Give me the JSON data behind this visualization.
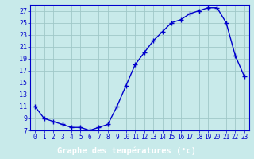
{
  "hours": [
    0,
    1,
    2,
    3,
    4,
    5,
    6,
    7,
    8,
    9,
    10,
    11,
    12,
    13,
    14,
    15,
    16,
    17,
    18,
    19,
    20,
    21,
    22,
    23
  ],
  "temperatures": [
    11,
    9,
    8.5,
    8,
    7.5,
    7.5,
    7,
    7.5,
    8,
    11,
    14.5,
    18,
    20,
    22,
    23.5,
    25,
    25.5,
    26.5,
    27,
    27.5,
    27.5,
    25,
    19.5,
    16
  ],
  "line_color": "#0000cc",
  "marker": "+",
  "marker_size": 4,
  "marker_linewidth": 1.0,
  "line_width": 1.0,
  "background_color": "#c8eaea",
  "grid_color": "#a0c8c8",
  "xlabel": "Graphe des températures (°c)",
  "xlabel_color": "#ffffff",
  "xlabel_bg": "#0000aa",
  "xlim_min": -0.5,
  "xlim_max": 23.5,
  "ylim_min": 7,
  "ylim_max": 28,
  "yticks": [
    7,
    9,
    11,
    13,
    15,
    17,
    19,
    21,
    23,
    25,
    27
  ],
  "xticks": [
    0,
    1,
    2,
    3,
    4,
    5,
    6,
    7,
    8,
    9,
    10,
    11,
    12,
    13,
    14,
    15,
    16,
    17,
    18,
    19,
    20,
    21,
    22,
    23
  ],
  "spine_color": "#0000cc",
  "tick_color": "#0000cc",
  "ytick_fontsize": 6,
  "xtick_fontsize": 5.5,
  "xlabel_fontsize": 7.5
}
